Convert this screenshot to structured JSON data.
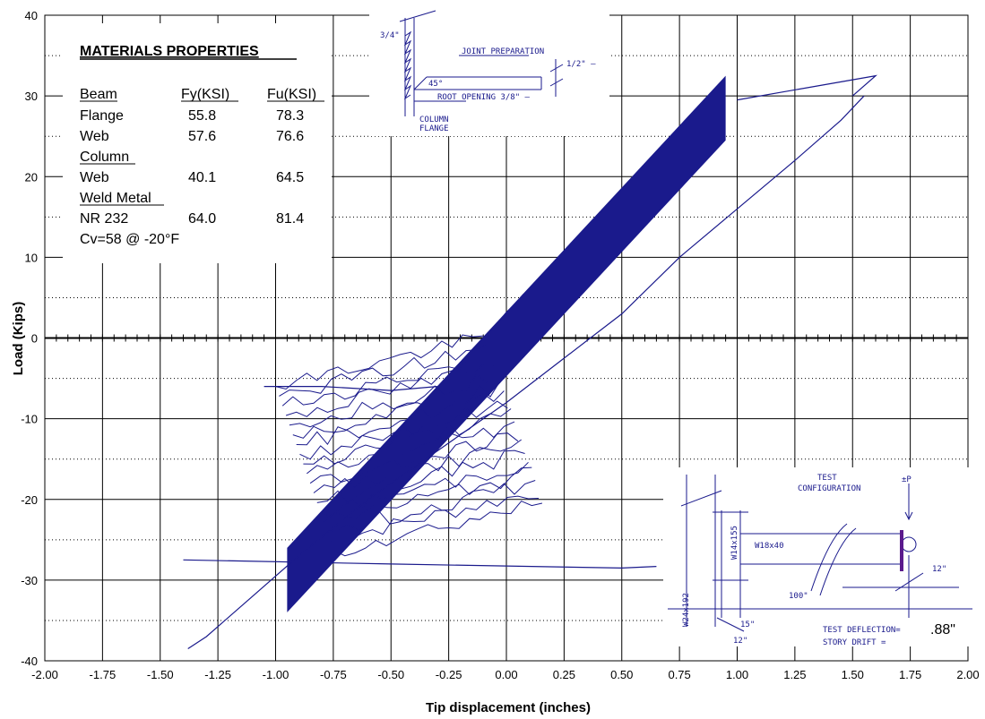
{
  "chart_data": {
    "type": "line",
    "title": "",
    "xlabel": "Tip displacement (inches)",
    "ylabel": "Load (Kips)",
    "xlim": [
      -2.0,
      2.0
    ],
    "ylim": [
      -40,
      40
    ],
    "x_ticks": [
      "-2.00",
      "-1.75",
      "-1.50",
      "-1.25",
      "-1.00",
      "-0.75",
      "-0.50",
      "-0.25",
      "0.00",
      "0.25",
      "0.50",
      "0.75",
      "1.00",
      "1.25",
      "1.50",
      "1.75",
      "2.00"
    ],
    "y_ticks": [
      "40",
      "30",
      "20",
      "10",
      "0",
      "-10",
      "-20",
      "-30",
      "-40"
    ],
    "grid": true,
    "series_color": "#1a1a8c",
    "series": [
      {
        "description": "hysteresis loops, dense elastic band",
        "band_points": [
          [
            -0.95,
            -30
          ],
          [
            0.95,
            28.5
          ]
        ]
      },
      {
        "points": [
          [
            -1.38,
            -38.5
          ],
          [
            -1.3,
            -37
          ],
          [
            -1.1,
            -32
          ],
          [
            -0.9,
            -27
          ],
          [
            -0.6,
            -20
          ],
          [
            -0.3,
            -14
          ],
          [
            0.0,
            -8
          ],
          [
            0.25,
            -2.5
          ],
          [
            0.5,
            3
          ],
          [
            0.75,
            10
          ],
          [
            1.0,
            16
          ],
          [
            1.25,
            22
          ],
          [
            1.45,
            27
          ],
          [
            1.55,
            30
          ]
        ]
      },
      {
        "points": [
          [
            -1.4,
            -27.5
          ],
          [
            -0.5,
            -28
          ],
          [
            0.5,
            -28.5
          ],
          [
            0.65,
            -28.3
          ]
        ]
      },
      {
        "points": [
          [
            -1.05,
            -6
          ],
          [
            -0.8,
            -6
          ],
          [
            -0.5,
            -6.5
          ],
          [
            -0.3,
            -6
          ]
        ]
      },
      {
        "points": [
          [
            1.5,
            30
          ],
          [
            1.6,
            32.5
          ],
          [
            1.3,
            31
          ],
          [
            1.0,
            29.5
          ]
        ]
      }
    ]
  },
  "materials": {
    "title": "MATERIALS PROPERTIES",
    "headers": [
      "Beam",
      "Fy(KSI)",
      "Fu(KSI)"
    ],
    "rows": [
      [
        "Flange",
        "55.8",
        "78.3"
      ],
      [
        "Web",
        "57.6",
        "76.6"
      ],
      [
        "Column",
        "",
        ""
      ],
      [
        "Web",
        "40.1",
        "64.5"
      ],
      [
        "Weld Metal",
        "",
        ""
      ],
      [
        "NR 232",
        "64.0",
        "81.4"
      ],
      [
        "Cv=58 @ -20°F",
        "",
        ""
      ]
    ]
  },
  "joint_detail": {
    "label_joint_prep": "JOINT PREPARATION",
    "label_angle": "45°",
    "label_root": "ROOT OPENING 3/8\" –",
    "label_thk": "3/4\"",
    "label_half": "1/2\" –",
    "label_col": "COLUMN",
    "label_flange": "FLANGE"
  },
  "test_config": {
    "title_1": "TEST",
    "title_2": "CONFIGURATION",
    "load": "±P",
    "col": "W24x192",
    "stub": "W14x155",
    "beam": "W18x40",
    "span": "100\"",
    "dim_12": "12\"",
    "dim_15": "15\"",
    "dim_12b": "12\"",
    "deflection_label": "TEST DEFLECTION=",
    "deflection_value": ".88\"",
    "drift_label": "STORY DRIFT ="
  }
}
